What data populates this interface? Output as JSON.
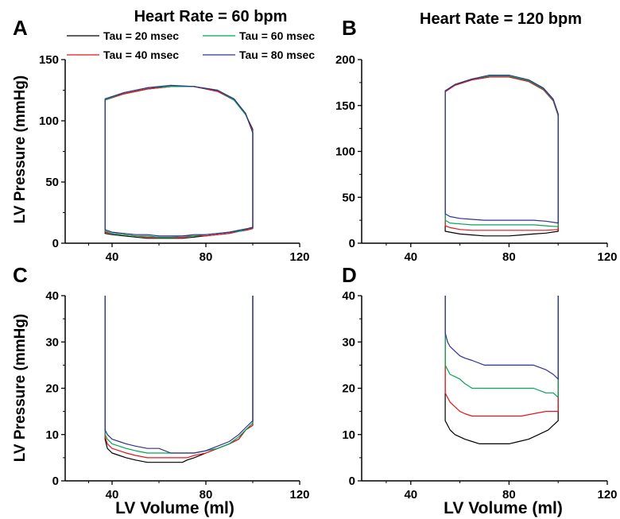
{
  "figure": {
    "column_titles": [
      "Heart Rate = 60 bpm",
      "Heart Rate = 120 bpm"
    ],
    "ylabel": "LV Pressure (mmHg)",
    "xlabel": "LV Volume (ml)"
  },
  "legend": {
    "entries": [
      {
        "label": "Tau = 20 msec",
        "color": "#000000"
      },
      {
        "label": "Tau = 60 msec",
        "color": "#00a651"
      },
      {
        "label": "Tau = 40 msec",
        "color": "#e8141c"
      },
      {
        "label": "Tau = 80 msec",
        "color": "#2e3192"
      }
    ]
  },
  "chart_data": [
    {
      "type": "line",
      "panel": "A",
      "title": "Heart Rate = 60 bpm",
      "xlabel": "",
      "ylabel": "LV Pressure (mmHg)",
      "xlim": [
        20,
        120
      ],
      "ylim": [
        0,
        150
      ],
      "xticks": [
        40,
        80,
        120
      ],
      "yticks": [
        0,
        50,
        100,
        150
      ],
      "series": [
        {
          "name": "Tau = 20 msec",
          "color": "#000000",
          "x": [
            37,
            37,
            45,
            55,
            65,
            75,
            85,
            92,
            97,
            100,
            100,
            98,
            95,
            90,
            85,
            80,
            75,
            70,
            65,
            60,
            55,
            50,
            45,
            40,
            37,
            37
          ],
          "y": [
            115,
            117,
            122,
            126,
            128,
            128,
            124,
            117,
            105,
            93,
            12,
            11,
            10,
            8,
            7,
            6,
            5,
            4,
            4,
            4,
            4,
            5,
            6,
            7,
            8,
            115
          ]
        },
        {
          "name": "Tau = 40 msec",
          "color": "#e8141c",
          "x": [
            37,
            37,
            45,
            55,
            65,
            75,
            85,
            92,
            97,
            100,
            100,
            98,
            95,
            90,
            85,
            80,
            75,
            70,
            65,
            60,
            55,
            50,
            45,
            40,
            37,
            37
          ],
          "y": [
            115,
            117,
            122,
            126,
            128,
            128,
            124,
            117,
            105,
            92,
            12,
            11,
            10,
            8,
            7,
            6,
            6,
            5,
            5,
            5,
            5,
            6,
            7,
            8,
            9,
            115
          ]
        },
        {
          "name": "Tau = 60 msec",
          "color": "#00a651",
          "x": [
            37,
            37,
            45,
            55,
            65,
            75,
            85,
            92,
            97,
            100,
            100,
            98,
            95,
            90,
            85,
            80,
            75,
            70,
            65,
            60,
            55,
            50,
            45,
            40,
            37,
            37
          ],
          "y": [
            116,
            117,
            123,
            127,
            128,
            128,
            125,
            117,
            105,
            91,
            13,
            12,
            10,
            9,
            8,
            7,
            6,
            6,
            5,
            5,
            6,
            6,
            7,
            8,
            10,
            116
          ]
        },
        {
          "name": "Tau = 80 msec",
          "color": "#2e3192",
          "x": [
            37,
            37,
            45,
            55,
            65,
            75,
            85,
            92,
            97,
            100,
            100,
            98,
            95,
            90,
            85,
            80,
            75,
            70,
            65,
            60,
            55,
            50,
            45,
            40,
            37,
            37
          ],
          "y": [
            116,
            118,
            123,
            127,
            129,
            128,
            125,
            118,
            106,
            90,
            13,
            12,
            11,
            9,
            8,
            7,
            7,
            6,
            6,
            6,
            7,
            7,
            8,
            9,
            11,
            116
          ]
        }
      ]
    },
    {
      "type": "line",
      "panel": "B",
      "title": "Heart Rate = 120 bpm",
      "xlabel": "",
      "ylabel": "",
      "xlim": [
        20,
        120
      ],
      "ylim": [
        0,
        200
      ],
      "xticks": [
        40,
        80,
        120
      ],
      "yticks": [
        0,
        50,
        100,
        150,
        200
      ],
      "series": [
        {
          "name": "Tau = 20 msec",
          "color": "#000000",
          "x": [
            54,
            54,
            58,
            65,
            72,
            80,
            88,
            94,
            98,
            100,
            100,
            95,
            90,
            85,
            80,
            75,
            70,
            65,
            60,
            56,
            54,
            54
          ],
          "y": [
            158,
            165,
            172,
            178,
            181,
            181,
            177,
            168,
            156,
            140,
            13,
            11,
            10,
            9,
            8,
            8,
            8,
            9,
            10,
            12,
            13,
            158
          ]
        },
        {
          "name": "Tau = 40 msec",
          "color": "#e8141c",
          "x": [
            54,
            54,
            58,
            65,
            72,
            80,
            88,
            94,
            98,
            100,
            100,
            95,
            90,
            85,
            80,
            75,
            70,
            65,
            60,
            56,
            54,
            54
          ],
          "y": [
            158,
            165,
            172,
            178,
            181,
            181,
            176,
            167,
            155,
            139,
            15,
            14,
            14,
            14,
            14,
            14,
            14,
            14,
            15,
            17,
            19,
            158
          ]
        },
        {
          "name": "Tau = 60 msec",
          "color": "#00a651",
          "x": [
            54,
            54,
            58,
            65,
            72,
            80,
            88,
            94,
            98,
            100,
            100,
            95,
            90,
            85,
            80,
            75,
            70,
            65,
            60,
            56,
            54,
            54
          ],
          "y": [
            159,
            166,
            173,
            179,
            182,
            182,
            177,
            168,
            156,
            140,
            18,
            19,
            20,
            20,
            20,
            20,
            20,
            20,
            21,
            22,
            25,
            159
          ]
        },
        {
          "name": "Tau = 80 msec",
          "color": "#2e3192",
          "x": [
            54,
            54,
            58,
            65,
            72,
            80,
            88,
            94,
            98,
            100,
            100,
            95,
            90,
            85,
            80,
            75,
            70,
            65,
            60,
            56,
            54,
            54
          ],
          "y": [
            159,
            166,
            173,
            179,
            183,
            183,
            178,
            169,
            157,
            141,
            22,
            24,
            25,
            25,
            25,
            25,
            25,
            26,
            27,
            29,
            32,
            159
          ]
        }
      ]
    },
    {
      "type": "line",
      "panel": "C",
      "title": "",
      "xlabel": "LV Volume (ml)",
      "ylabel": "LV Pressure (mmHg)",
      "xlim": [
        20,
        120
      ],
      "ylim": [
        0,
        40
      ],
      "xticks": [
        40,
        80,
        120
      ],
      "yticks": [
        0,
        10,
        20,
        30,
        40
      ],
      "series": [
        {
          "name": "Tau = 20 msec",
          "color": "#000000",
          "x": [
            37,
            37,
            38,
            40,
            43,
            46,
            50,
            55,
            60,
            65,
            70,
            72,
            75,
            80,
            85,
            90,
            94,
            97,
            100,
            100
          ],
          "y": [
            40,
            9,
            7,
            6,
            5.5,
            5,
            4.5,
            4,
            4,
            4,
            4,
            4.5,
            5,
            6,
            7,
            8,
            9,
            11,
            12,
            40
          ]
        },
        {
          "name": "Tau = 40 msec",
          "color": "#e8141c",
          "x": [
            37,
            37,
            38,
            40,
            43,
            46,
            50,
            55,
            60,
            65,
            70,
            72,
            75,
            80,
            85,
            90,
            94,
            97,
            100,
            100
          ],
          "y": [
            40,
            9.5,
            8,
            7,
            6.5,
            6,
            5.5,
            5,
            5,
            5,
            5,
            5,
            5.5,
            6,
            7,
            8,
            9,
            11,
            12,
            40
          ]
        },
        {
          "name": "Tau = 60 msec",
          "color": "#00a651",
          "x": [
            37,
            37,
            38,
            40,
            43,
            46,
            50,
            55,
            60,
            65,
            70,
            72,
            75,
            80,
            85,
            90,
            94,
            97,
            100,
            100
          ],
          "y": [
            40,
            10,
            9,
            8,
            7.5,
            7,
            6.5,
            6,
            6,
            6,
            6,
            6,
            6,
            6.5,
            7,
            8,
            9.5,
            11,
            12.5,
            40
          ]
        },
        {
          "name": "Tau = 80 msec",
          "color": "#2e3192",
          "x": [
            37,
            37,
            38,
            40,
            43,
            46,
            50,
            55,
            60,
            65,
            70,
            72,
            75,
            80,
            85,
            90,
            94,
            97,
            100,
            100
          ],
          "y": [
            40,
            11,
            10,
            9,
            8.5,
            8,
            7.5,
            7,
            7,
            6,
            6,
            6,
            6,
            6.5,
            7.5,
            8.5,
            10,
            11.5,
            13,
            40
          ]
        }
      ]
    },
    {
      "type": "line",
      "panel": "D",
      "title": "",
      "xlabel": "LV Volume (ml)",
      "ylabel": "",
      "xlim": [
        20,
        120
      ],
      "ylim": [
        0,
        40
      ],
      "xticks": [
        40,
        80,
        120
      ],
      "yticks": [
        0,
        10,
        20,
        30,
        40
      ],
      "series": [
        {
          "name": "Tau = 20 msec",
          "color": "#000000",
          "x": [
            54,
            54,
            56,
            58,
            60,
            62,
            65,
            68,
            72,
            76,
            80,
            84,
            88,
            92,
            96,
            98,
            100,
            100
          ],
          "y": [
            40,
            13,
            11,
            10,
            9.5,
            9,
            8.5,
            8,
            8,
            8,
            8,
            8.5,
            9,
            10,
            11,
            12,
            13,
            40
          ]
        },
        {
          "name": "Tau = 40 msec",
          "color": "#e8141c",
          "x": [
            54,
            54,
            55,
            56,
            58,
            60,
            62,
            65,
            70,
            75,
            80,
            85,
            90,
            95,
            100,
            100
          ],
          "y": [
            40,
            19,
            18,
            17,
            16,
            15,
            14.5,
            14,
            14,
            14,
            14,
            14,
            14.5,
            15,
            15,
            40
          ]
        },
        {
          "name": "Tau = 60 msec",
          "color": "#00a651",
          "x": [
            54,
            54,
            55,
            56,
            58,
            60,
            62,
            65,
            70,
            75,
            80,
            85,
            90,
            95,
            98,
            100,
            100
          ],
          "y": [
            40,
            25,
            24,
            23,
            22.5,
            22,
            21,
            20,
            20,
            20,
            20,
            20,
            20,
            19,
            19,
            18,
            40
          ]
        },
        {
          "name": "Tau = 80 msec",
          "color": "#2e3192",
          "x": [
            54,
            54,
            55,
            56,
            58,
            60,
            62,
            65,
            70,
            75,
            80,
            85,
            90,
            95,
            98,
            100,
            100
          ],
          "y": [
            40,
            32,
            30,
            29,
            28,
            27,
            26.5,
            26,
            25,
            25,
            25,
            25,
            25,
            24,
            23,
            22,
            40
          ]
        }
      ]
    }
  ]
}
